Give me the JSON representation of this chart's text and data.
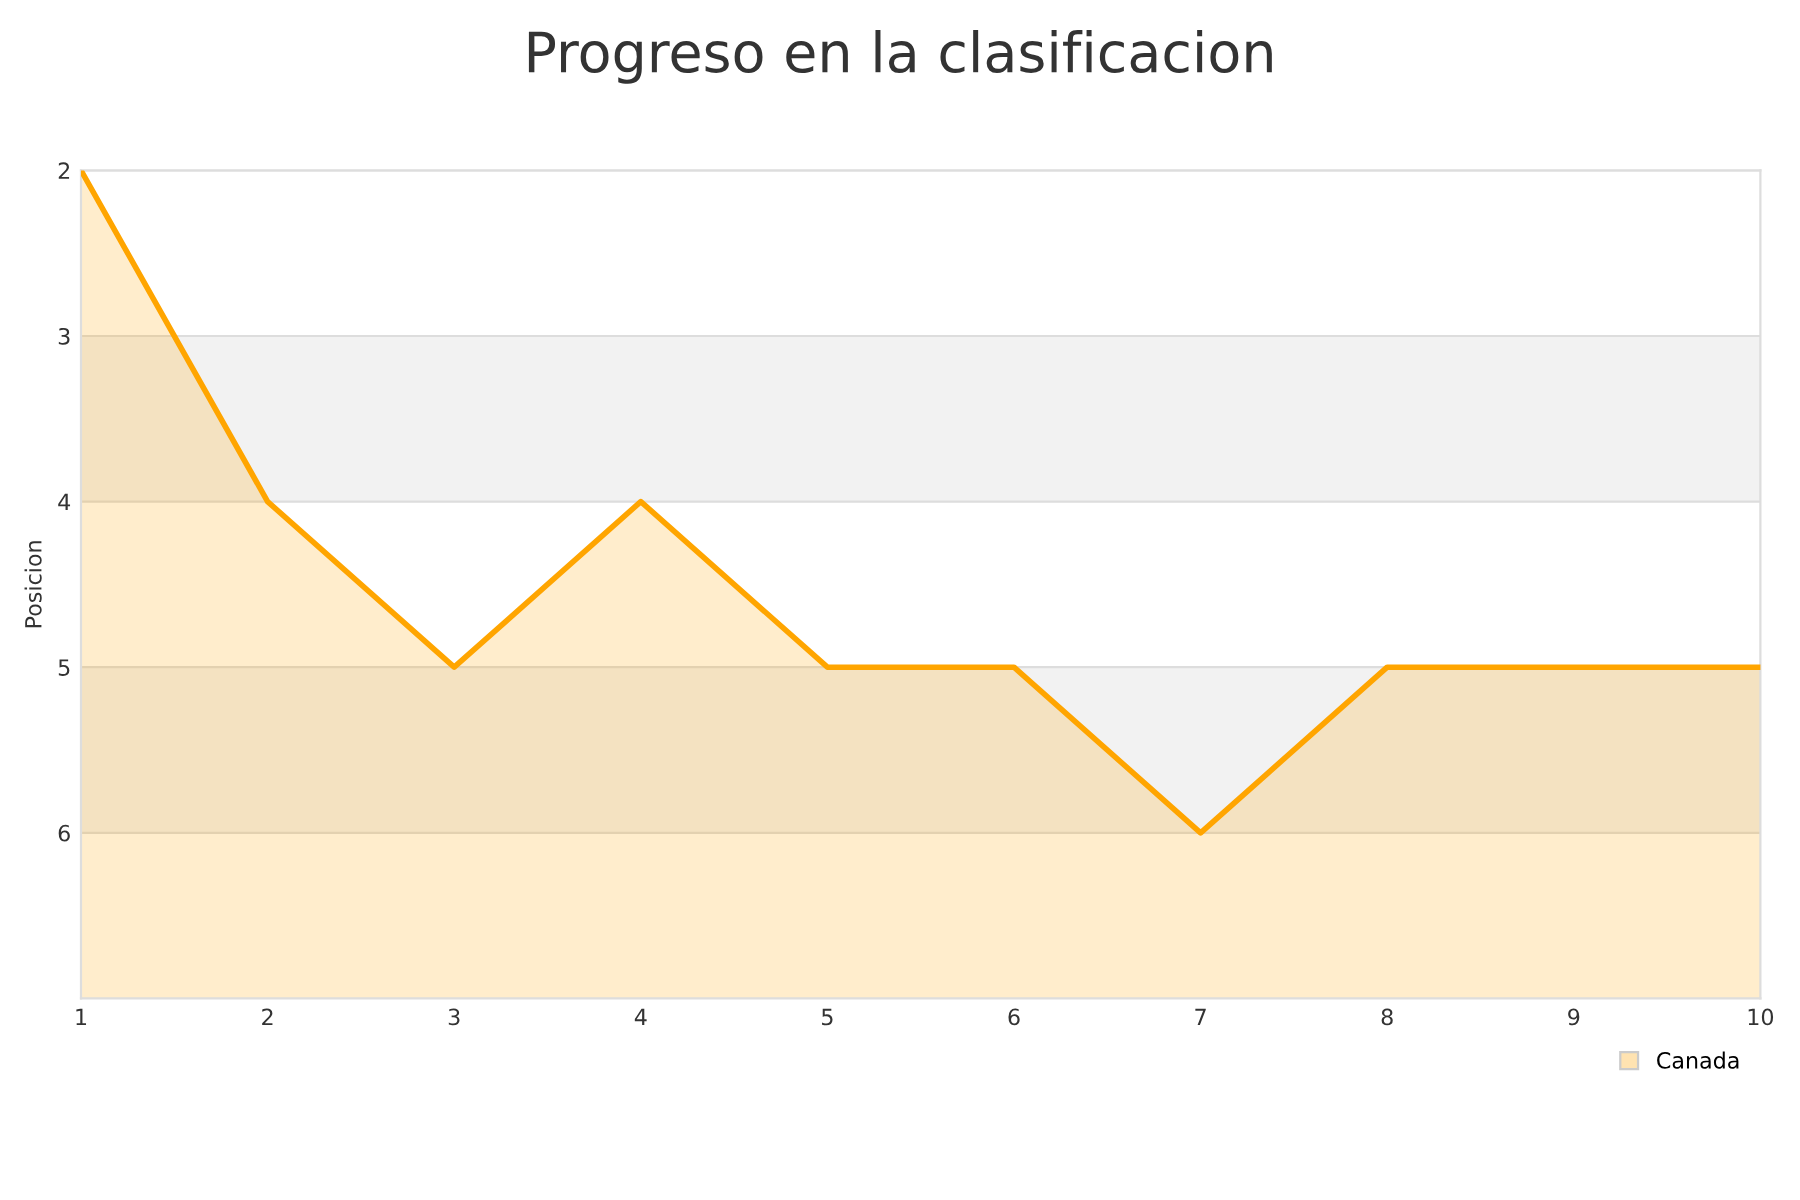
{
  "chart_data": {
    "type": "area",
    "title": "Progreso en la clasificacion",
    "ylabel": "Posicion",
    "x": [
      1,
      2,
      3,
      4,
      5,
      6,
      7,
      8,
      9,
      10
    ],
    "series": [
      {
        "name": "Canada",
        "color": "#ffa500",
        "values": [
          2,
          4,
          5,
          4,
          5,
          5,
          6,
          5,
          5,
          5
        ]
      }
    ],
    "xlim": [
      1,
      10
    ],
    "xticks": [
      1,
      2,
      3,
      4,
      5,
      6,
      7,
      8,
      9,
      10
    ],
    "ylim": [
      7,
      2
    ],
    "yticks": [
      2,
      3,
      4,
      5,
      6
    ],
    "bands": [
      {
        "axis": "y",
        "from": 3,
        "to": 4,
        "color": "#f2f2f2"
      },
      {
        "axis": "y",
        "from": 5,
        "to": 6,
        "color": "#f2f2f2"
      }
    ],
    "grid": "y",
    "legend": "bottom right",
    "marker": "none",
    "line_style": "solid"
  }
}
